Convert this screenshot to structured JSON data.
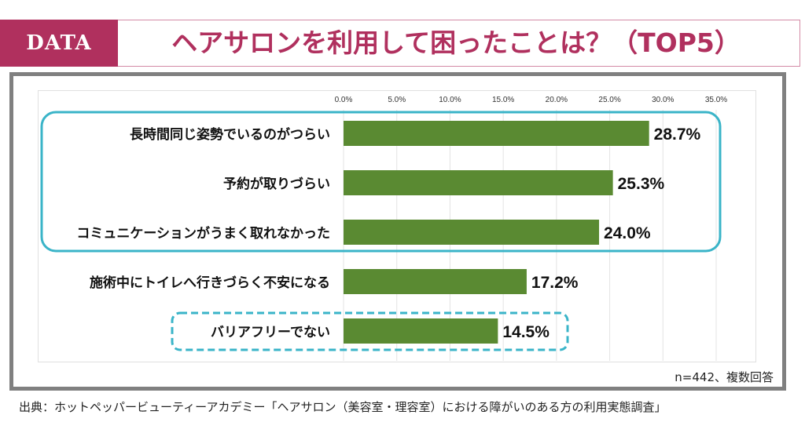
{
  "header": {
    "tag": "DATA",
    "title": "ヘアサロンを利用して困ったことは？（TOP5）"
  },
  "note": "n=442、複数回答",
  "source": "出典：ホットペッパービューティーアカデミー「ヘアサロン（美容室・理容室）における障がいのある方の利用実態調査」",
  "colors": {
    "accent": "#b0305e",
    "bar": "#5a8a32",
    "highlight": "#3ab4c8"
  },
  "chart_data": {
    "type": "bar",
    "orientation": "horizontal",
    "categories": [
      "長時間同じ姿勢でいるのがつらい",
      "予約が取りづらい",
      "コミュニケーションがうまく取れなかった",
      "施術中にトイレへ行きづらく不安になる",
      "バリアフリーでない"
    ],
    "values": [
      28.7,
      25.3,
      24.0,
      17.2,
      14.5
    ],
    "data_labels": [
      "28.7%",
      "25.3%",
      "24.0%",
      "17.2%",
      "14.5%"
    ],
    "xlim": [
      0,
      35
    ],
    "ticks": [
      "0.0%",
      "5.0%",
      "10.0%",
      "15.0%",
      "20.0%",
      "25.0%",
      "30.0%",
      "35.0%"
    ],
    "tick_position": "top",
    "grid": true,
    "highlight_solid": [
      0,
      1,
      2
    ],
    "highlight_dashed": [
      4
    ]
  }
}
